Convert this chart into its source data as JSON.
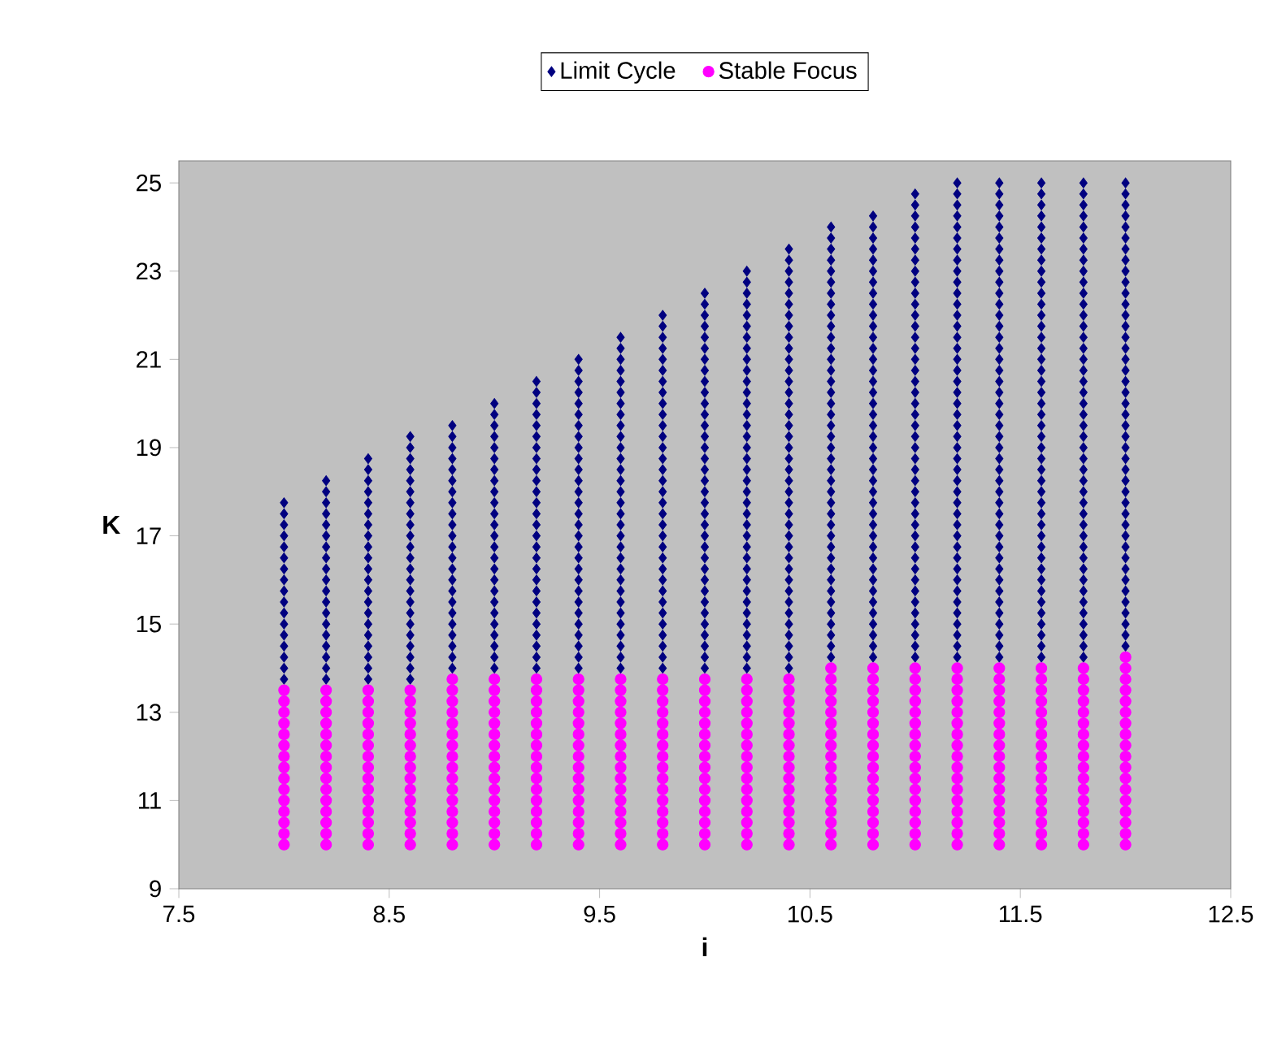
{
  "chart_data": {
    "type": "scatter",
    "xlabel": "i",
    "ylabel": "K",
    "xlim": [
      7.5,
      12.5
    ],
    "ylim": [
      9,
      25.5
    ],
    "xticks": [
      7.5,
      8.5,
      9.5,
      10.5,
      11.5,
      12.5
    ],
    "yticks": [
      9,
      11,
      13,
      15,
      17,
      19,
      21,
      23,
      25
    ],
    "legend": "top",
    "grid": false,
    "series": [
      {
        "name": "Limit Cycle",
        "color": "#000080",
        "marker": "diamond",
        "x": [
          8,
          8,
          8,
          8,
          8,
          8,
          8,
          8,
          8,
          8,
          8,
          8,
          8,
          8,
          8,
          8,
          8,
          8.2,
          8.2,
          8.2,
          8.2,
          8.2,
          8.2,
          8.2,
          8.2,
          8.2,
          8.2,
          8.2,
          8.2,
          8.2,
          8.2,
          8.2,
          8.2,
          8.2,
          8.2,
          8.2,
          8.4,
          8.4,
          8.4,
          8.4,
          8.4,
          8.4,
          8.4,
          8.4,
          8.4,
          8.4,
          8.4,
          8.4,
          8.4,
          8.4,
          8.4,
          8.4,
          8.4,
          8.4,
          8.4,
          8.4,
          8.4,
          8.6,
          8.6,
          8.6,
          8.6,
          8.6,
          8.6,
          8.6,
          8.6,
          8.6,
          8.6,
          8.6,
          8.6,
          8.6,
          8.6,
          8.6,
          8.6,
          8.6,
          8.6,
          8.6,
          8.6,
          8.6,
          8.6,
          8.6,
          8.8,
          8.8,
          8.8,
          8.8,
          8.8,
          8.8,
          8.8,
          8.8,
          8.8,
          8.8,
          8.8,
          8.8,
          8.8,
          8.8,
          8.8,
          8.8,
          8.8,
          8.8,
          8.8,
          8.8,
          8.8,
          8.8,
          8.8,
          9,
          9,
          9,
          9,
          9,
          9,
          9,
          9,
          9,
          9,
          9,
          9,
          9,
          9,
          9,
          9,
          9,
          9,
          9,
          9,
          9,
          9,
          9,
          9,
          9,
          9.2,
          9.2,
          9.2,
          9.2,
          9.2,
          9.2,
          9.2,
          9.2,
          9.2,
          9.2,
          9.2,
          9.2,
          9.2,
          9.2,
          9.2,
          9.2,
          9.2,
          9.2,
          9.2,
          9.2,
          9.2,
          9.2,
          9.2,
          9.2,
          9.2,
          9.2,
          9.2,
          9.4,
          9.4,
          9.4,
          9.4,
          9.4,
          9.4,
          9.4,
          9.4,
          9.4,
          9.4,
          9.4,
          9.4,
          9.4,
          9.4,
          9.4,
          9.4,
          9.4,
          9.4,
          9.4,
          9.4,
          9.4,
          9.4,
          9.4,
          9.4,
          9.4,
          9.4,
          9.4,
          9.4,
          9.4,
          9.6,
          9.6,
          9.6,
          9.6,
          9.6,
          9.6,
          9.6,
          9.6,
          9.6,
          9.6,
          9.6,
          9.6,
          9.6,
          9.6,
          9.6,
          9.6,
          9.6,
          9.6,
          9.6,
          9.6,
          9.6,
          9.6,
          9.6,
          9.6,
          9.6,
          9.6,
          9.6,
          9.6,
          9.6,
          9.6,
          9.6,
          9.8,
          9.8,
          9.8,
          9.8,
          9.8,
          9.8,
          9.8,
          9.8,
          9.8,
          9.8,
          9.8,
          9.8,
          9.8,
          9.8,
          9.8,
          9.8,
          9.8,
          9.8,
          9.8,
          9.8,
          9.8,
          9.8,
          9.8,
          9.8,
          9.8,
          9.8,
          9.8,
          9.8,
          9.8,
          9.8,
          9.8,
          9.8,
          9.8,
          10,
          10,
          10,
          10,
          10,
          10,
          10,
          10,
          10,
          10,
          10,
          10,
          10,
          10,
          10,
          10,
          10,
          10,
          10,
          10,
          10,
          10,
          10,
          10,
          10,
          10,
          10,
          10,
          10,
          10,
          10,
          10,
          10,
          10,
          10,
          10.2,
          10.2,
          10.2,
          10.2,
          10.2,
          10.2,
          10.2,
          10.2,
          10.2,
          10.2,
          10.2,
          10.2,
          10.2,
          10.2,
          10.2,
          10.2,
          10.2,
          10.2,
          10.2,
          10.2,
          10.2,
          10.2,
          10.2,
          10.2,
          10.2,
          10.2,
          10.2,
          10.2,
          10.2,
          10.2,
          10.2,
          10.2,
          10.2,
          10.2,
          10.2,
          10.2,
          10.2,
          10.4,
          10.4,
          10.4,
          10.4,
          10.4,
          10.4,
          10.4,
          10.4,
          10.4,
          10.4,
          10.4,
          10.4,
          10.4,
          10.4,
          10.4,
          10.4,
          10.4,
          10.4,
          10.4,
          10.4,
          10.4,
          10.4,
          10.4,
          10.4,
          10.4,
          10.4,
          10.4,
          10.4,
          10.4,
          10.4,
          10.4,
          10.4,
          10.4,
          10.4,
          10.4,
          10.4,
          10.4,
          10.4,
          10.4,
          10.6,
          10.6,
          10.6,
          10.6,
          10.6,
          10.6,
          10.6,
          10.6,
          10.6,
          10.6,
          10.6,
          10.6,
          10.6,
          10.6,
          10.6,
          10.6,
          10.6,
          10.6,
          10.6,
          10.6,
          10.6,
          10.6,
          10.6,
          10.6,
          10.6,
          10.6,
          10.6,
          10.6,
          10.6,
          10.6,
          10.6,
          10.6,
          10.6,
          10.6,
          10.6,
          10.6,
          10.6,
          10.6,
          10.6,
          10.6,
          10.8,
          10.8,
          10.8,
          10.8,
          10.8,
          10.8,
          10.8,
          10.8,
          10.8,
          10.8,
          10.8,
          10.8,
          10.8,
          10.8,
          10.8,
          10.8,
          10.8,
          10.8,
          10.8,
          10.8,
          10.8,
          10.8,
          10.8,
          10.8,
          10.8,
          10.8,
          10.8,
          10.8,
          10.8,
          10.8,
          10.8,
          10.8,
          10.8,
          10.8,
          10.8,
          10.8,
          10.8,
          10.8,
          10.8,
          10.8,
          10.8,
          11,
          11,
          11,
          11,
          11,
          11,
          11,
          11,
          11,
          11,
          11,
          11,
          11,
          11,
          11,
          11,
          11,
          11,
          11,
          11,
          11,
          11,
          11,
          11,
          11,
          11,
          11,
          11,
          11,
          11,
          11,
          11,
          11,
          11,
          11,
          11,
          11,
          11,
          11,
          11,
          11,
          11,
          11,
          11.2,
          11.2,
          11.2,
          11.2,
          11.2,
          11.2,
          11.2,
          11.2,
          11.2,
          11.2,
          11.2,
          11.2,
          11.2,
          11.2,
          11.2,
          11.2,
          11.2,
          11.2,
          11.2,
          11.2,
          11.2,
          11.2,
          11.2,
          11.2,
          11.2,
          11.2,
          11.2,
          11.2,
          11.2,
          11.2,
          11.2,
          11.2,
          11.2,
          11.2,
          11.2,
          11.2,
          11.2,
          11.2,
          11.2,
          11.2,
          11.2,
          11.2,
          11.2,
          11.2,
          11.4,
          11.4,
          11.4,
          11.4,
          11.4,
          11.4,
          11.4,
          11.4,
          11.4,
          11.4,
          11.4,
          11.4,
          11.4,
          11.4,
          11.4,
          11.4,
          11.4,
          11.4,
          11.4,
          11.4,
          11.4,
          11.4,
          11.4,
          11.4,
          11.4,
          11.4,
          11.4,
          11.4,
          11.4,
          11.4,
          11.4,
          11.4,
          11.4,
          11.4,
          11.4,
          11.4,
          11.4,
          11.4,
          11.4,
          11.4,
          11.4,
          11.4,
          11.4,
          11.4,
          11.6,
          11.6,
          11.6,
          11.6,
          11.6,
          11.6,
          11.6,
          11.6,
          11.6,
          11.6,
          11.6,
          11.6,
          11.6,
          11.6,
          11.6,
          11.6,
          11.6,
          11.6,
          11.6,
          11.6,
          11.6,
          11.6,
          11.6,
          11.6,
          11.6,
          11.6,
          11.6,
          11.6,
          11.6,
          11.6,
          11.6,
          11.6,
          11.6,
          11.6,
          11.6,
          11.6,
          11.6,
          11.6,
          11.6,
          11.6,
          11.6,
          11.6,
          11.6,
          11.6,
          11.8,
          11.8,
          11.8,
          11.8,
          11.8,
          11.8,
          11.8,
          11.8,
          11.8,
          11.8,
          11.8,
          11.8,
          11.8,
          11.8,
          11.8,
          11.8,
          11.8,
          11.8,
          11.8,
          11.8,
          11.8,
          11.8,
          11.8,
          11.8,
          11.8,
          11.8,
          11.8,
          11.8,
          11.8,
          11.8,
          11.8,
          11.8,
          11.8,
          11.8,
          11.8,
          11.8,
          11.8,
          11.8,
          11.8,
          11.8,
          11.8,
          11.8,
          11.8,
          11.8,
          12,
          12,
          12,
          12,
          12,
          12,
          12,
          12,
          12,
          12,
          12,
          12,
          12,
          12,
          12,
          12,
          12,
          12,
          12,
          12,
          12,
          12,
          12,
          12,
          12,
          12,
          12,
          12,
          12,
          12,
          12,
          12,
          12,
          12,
          12,
          12,
          12,
          12,
          12,
          12,
          12,
          12,
          12
        ],
        "values": [
          13.75,
          14,
          14.25,
          14.5,
          14.75,
          15,
          15.25,
          15.5,
          15.75,
          16,
          16.25,
          16.5,
          16.75,
          17,
          17.25,
          17.5,
          17.75,
          13.75,
          14,
          14.25,
          14.5,
          14.75,
          15,
          15.25,
          15.5,
          15.75,
          16,
          16.25,
          16.5,
          16.75,
          17,
          17.25,
          17.5,
          17.75,
          18,
          18.25,
          13.75,
          14,
          14.25,
          14.5,
          14.75,
          15,
          15.25,
          15.5,
          15.75,
          16,
          16.25,
          16.5,
          16.75,
          17,
          17.25,
          17.5,
          17.75,
          18,
          18.25,
          18.5,
          18.75,
          13.75,
          14,
          14.25,
          14.5,
          14.75,
          15,
          15.25,
          15.5,
          15.75,
          16,
          16.25,
          16.5,
          16.75,
          17,
          17.25,
          17.5,
          17.75,
          18,
          18.25,
          18.5,
          18.75,
          19,
          19.25,
          14,
          14.25,
          14.5,
          14.75,
          15,
          15.25,
          15.5,
          15.75,
          16,
          16.25,
          16.5,
          16.75,
          17,
          17.25,
          17.5,
          17.75,
          18,
          18.25,
          18.5,
          18.75,
          19,
          19.25,
          19.5,
          14,
          14.25,
          14.5,
          14.75,
          15,
          15.25,
          15.5,
          15.75,
          16,
          16.25,
          16.5,
          16.75,
          17,
          17.25,
          17.5,
          17.75,
          18,
          18.25,
          18.5,
          18.75,
          19,
          19.25,
          19.5,
          19.75,
          20,
          14,
          14.25,
          14.5,
          14.75,
          15,
          15.25,
          15.5,
          15.75,
          16,
          16.25,
          16.5,
          16.75,
          17,
          17.25,
          17.5,
          17.75,
          18,
          18.25,
          18.5,
          18.75,
          19,
          19.25,
          19.5,
          19.75,
          20,
          20.25,
          20.5,
          14,
          14.25,
          14.5,
          14.75,
          15,
          15.25,
          15.5,
          15.75,
          16,
          16.25,
          16.5,
          16.75,
          17,
          17.25,
          17.5,
          17.75,
          18,
          18.25,
          18.5,
          18.75,
          19,
          19.25,
          19.5,
          19.75,
          20,
          20.25,
          20.5,
          20.75,
          21,
          14,
          14.25,
          14.5,
          14.75,
          15,
          15.25,
          15.5,
          15.75,
          16,
          16.25,
          16.5,
          16.75,
          17,
          17.25,
          17.5,
          17.75,
          18,
          18.25,
          18.5,
          18.75,
          19,
          19.25,
          19.5,
          19.75,
          20,
          20.25,
          20.5,
          20.75,
          21,
          21.25,
          21.5,
          14,
          14.25,
          14.5,
          14.75,
          15,
          15.25,
          15.5,
          15.75,
          16,
          16.25,
          16.5,
          16.75,
          17,
          17.25,
          17.5,
          17.75,
          18,
          18.25,
          18.5,
          18.75,
          19,
          19.25,
          19.5,
          19.75,
          20,
          20.25,
          20.5,
          20.75,
          21,
          21.25,
          21.5,
          21.75,
          22,
          14,
          14.25,
          14.5,
          14.75,
          15,
          15.25,
          15.5,
          15.75,
          16,
          16.25,
          16.5,
          16.75,
          17,
          17.25,
          17.5,
          17.75,
          18,
          18.25,
          18.5,
          18.75,
          19,
          19.25,
          19.5,
          19.75,
          20,
          20.25,
          20.5,
          20.75,
          21,
          21.25,
          21.5,
          21.75,
          22,
          22.25,
          22.5,
          14,
          14.25,
          14.5,
          14.75,
          15,
          15.25,
          15.5,
          15.75,
          16,
          16.25,
          16.5,
          16.75,
          17,
          17.25,
          17.5,
          17.75,
          18,
          18.25,
          18.5,
          18.75,
          19,
          19.25,
          19.5,
          19.75,
          20,
          20.25,
          20.5,
          20.75,
          21,
          21.25,
          21.5,
          21.75,
          22,
          22.25,
          22.5,
          22.75,
          23,
          14,
          14.25,
          14.5,
          14.75,
          15,
          15.25,
          15.5,
          15.75,
          16,
          16.25,
          16.5,
          16.75,
          17,
          17.25,
          17.5,
          17.75,
          18,
          18.25,
          18.5,
          18.75,
          19,
          19.25,
          19.5,
          19.75,
          20,
          20.25,
          20.5,
          20.75,
          21,
          21.25,
          21.5,
          21.75,
          22,
          22.25,
          22.5,
          22.75,
          23,
          23.25,
          23.5,
          14.25,
          14.5,
          14.75,
          15,
          15.25,
          15.5,
          15.75,
          16,
          16.25,
          16.5,
          16.75,
          17,
          17.25,
          17.5,
          17.75,
          18,
          18.25,
          18.5,
          18.75,
          19,
          19.25,
          19.5,
          19.75,
          20,
          20.25,
          20.5,
          20.75,
          21,
          21.25,
          21.5,
          21.75,
          22,
          22.25,
          22.5,
          22.75,
          23,
          23.25,
          23.5,
          23.75,
          24,
          14.25,
          14.5,
          14.75,
          15,
          15.25,
          15.5,
          15.75,
          16,
          16.25,
          16.5,
          16.75,
          17,
          17.25,
          17.5,
          17.75,
          18,
          18.25,
          18.5,
          18.75,
          19,
          19.25,
          19.5,
          19.75,
          20,
          20.25,
          20.5,
          20.75,
          21,
          21.25,
          21.5,
          21.75,
          22,
          22.25,
          22.5,
          22.75,
          23,
          23.25,
          23.5,
          23.75,
          24,
          24.25,
          14.25,
          14.5,
          14.75,
          15,
          15.25,
          15.5,
          15.75,
          16,
          16.25,
          16.5,
          16.75,
          17,
          17.25,
          17.5,
          17.75,
          18,
          18.25,
          18.5,
          18.75,
          19,
          19.25,
          19.5,
          19.75,
          20,
          20.25,
          20.5,
          20.75,
          21,
          21.25,
          21.5,
          21.75,
          22,
          22.25,
          22.5,
          22.75,
          23,
          23.25,
          23.5,
          23.75,
          24,
          24.25,
          24.5,
          24.75,
          14.25,
          14.5,
          14.75,
          15,
          15.25,
          15.5,
          15.75,
          16,
          16.25,
          16.5,
          16.75,
          17,
          17.25,
          17.5,
          17.75,
          18,
          18.25,
          18.5,
          18.75,
          19,
          19.25,
          19.5,
          19.75,
          20,
          20.25,
          20.5,
          20.75,
          21,
          21.25,
          21.5,
          21.75,
          22,
          22.25,
          22.5,
          22.75,
          23,
          23.25,
          23.5,
          23.75,
          24,
          24.25,
          24.5,
          24.75,
          25,
          14.25,
          14.5,
          14.75,
          15,
          15.25,
          15.5,
          15.75,
          16,
          16.25,
          16.5,
          16.75,
          17,
          17.25,
          17.5,
          17.75,
          18,
          18.25,
          18.5,
          18.75,
          19,
          19.25,
          19.5,
          19.75,
          20,
          20.25,
          20.5,
          20.75,
          21,
          21.25,
          21.5,
          21.75,
          22,
          22.25,
          22.5,
          22.75,
          23,
          23.25,
          23.5,
          23.75,
          24,
          24.25,
          24.5,
          24.75,
          25,
          14.25,
          14.5,
          14.75,
          15,
          15.25,
          15.5,
          15.75,
          16,
          16.25,
          16.5,
          16.75,
          17,
          17.25,
          17.5,
          17.75,
          18,
          18.25,
          18.5,
          18.75,
          19,
          19.25,
          19.5,
          19.75,
          20,
          20.25,
          20.5,
          20.75,
          21,
          21.25,
          21.5,
          21.75,
          22,
          22.25,
          22.5,
          22.75,
          23,
          23.25,
          23.5,
          23.75,
          24,
          24.25,
          24.5,
          24.75,
          25,
          14.25,
          14.5,
          14.75,
          15,
          15.25,
          15.5,
          15.75,
          16,
          16.25,
          16.5,
          16.75,
          17,
          17.25,
          17.5,
          17.75,
          18,
          18.25,
          18.5,
          18.75,
          19,
          19.25,
          19.5,
          19.75,
          20,
          20.25,
          20.5,
          20.75,
          21,
          21.25,
          21.5,
          21.75,
          22,
          22.25,
          22.5,
          22.75,
          23,
          23.25,
          23.5,
          23.75,
          24,
          24.25,
          24.5,
          24.75,
          25,
          14.5,
          14.75,
          15,
          15.25,
          15.5,
          15.75,
          16,
          16.25,
          16.5,
          16.75,
          17,
          17.25,
          17.5,
          17.75,
          18,
          18.25,
          18.5,
          18.75,
          19,
          19.25,
          19.5,
          19.75,
          20,
          20.25,
          20.5,
          20.75,
          21,
          21.25,
          21.5,
          21.75,
          22,
          22.25,
          22.5,
          22.75,
          23,
          23.25,
          23.5,
          23.75,
          24,
          24.25,
          24.5,
          24.75,
          25
        ]
      },
      {
        "name": "Stable Focus",
        "color": "#ff00ff",
        "marker": "circle",
        "x": [
          8,
          8,
          8,
          8,
          8,
          8,
          8,
          8,
          8,
          8,
          8,
          8,
          8,
          8,
          8,
          8.2,
          8.2,
          8.2,
          8.2,
          8.2,
          8.2,
          8.2,
          8.2,
          8.2,
          8.2,
          8.2,
          8.2,
          8.2,
          8.2,
          8.2,
          8.4,
          8.4,
          8.4,
          8.4,
          8.4,
          8.4,
          8.4,
          8.4,
          8.4,
          8.4,
          8.4,
          8.4,
          8.4,
          8.4,
          8.4,
          8.6,
          8.6,
          8.6,
          8.6,
          8.6,
          8.6,
          8.6,
          8.6,
          8.6,
          8.6,
          8.6,
          8.6,
          8.6,
          8.6,
          8.6,
          8.8,
          8.8,
          8.8,
          8.8,
          8.8,
          8.8,
          8.8,
          8.8,
          8.8,
          8.8,
          8.8,
          8.8,
          8.8,
          8.8,
          8.8,
          8.8,
          9,
          9,
          9,
          9,
          9,
          9,
          9,
          9,
          9,
          9,
          9,
          9,
          9,
          9,
          9,
          9,
          9.2,
          9.2,
          9.2,
          9.2,
          9.2,
          9.2,
          9.2,
          9.2,
          9.2,
          9.2,
          9.2,
          9.2,
          9.2,
          9.2,
          9.2,
          9.2,
          9.4,
          9.4,
          9.4,
          9.4,
          9.4,
          9.4,
          9.4,
          9.4,
          9.4,
          9.4,
          9.4,
          9.4,
          9.4,
          9.4,
          9.4,
          9.4,
          9.6,
          9.6,
          9.6,
          9.6,
          9.6,
          9.6,
          9.6,
          9.6,
          9.6,
          9.6,
          9.6,
          9.6,
          9.6,
          9.6,
          9.6,
          9.6,
          9.8,
          9.8,
          9.8,
          9.8,
          9.8,
          9.8,
          9.8,
          9.8,
          9.8,
          9.8,
          9.8,
          9.8,
          9.8,
          9.8,
          9.8,
          9.8,
          10,
          10,
          10,
          10,
          10,
          10,
          10,
          10,
          10,
          10,
          10,
          10,
          10,
          10,
          10,
          10,
          10.2,
          10.2,
          10.2,
          10.2,
          10.2,
          10.2,
          10.2,
          10.2,
          10.2,
          10.2,
          10.2,
          10.2,
          10.2,
          10.2,
          10.2,
          10.2,
          10.4,
          10.4,
          10.4,
          10.4,
          10.4,
          10.4,
          10.4,
          10.4,
          10.4,
          10.4,
          10.4,
          10.4,
          10.4,
          10.4,
          10.4,
          10.4,
          10.6,
          10.6,
          10.6,
          10.6,
          10.6,
          10.6,
          10.6,
          10.6,
          10.6,
          10.6,
          10.6,
          10.6,
          10.6,
          10.6,
          10.6,
          10.6,
          10.6,
          10.8,
          10.8,
          10.8,
          10.8,
          10.8,
          10.8,
          10.8,
          10.8,
          10.8,
          10.8,
          10.8,
          10.8,
          10.8,
          10.8,
          10.8,
          10.8,
          10.8,
          11,
          11,
          11,
          11,
          11,
          11,
          11,
          11,
          11,
          11,
          11,
          11,
          11,
          11,
          11,
          11,
          11,
          11.2,
          11.2,
          11.2,
          11.2,
          11.2,
          11.2,
          11.2,
          11.2,
          11.2,
          11.2,
          11.2,
          11.2,
          11.2,
          11.2,
          11.2,
          11.2,
          11.2,
          11.4,
          11.4,
          11.4,
          11.4,
          11.4,
          11.4,
          11.4,
          11.4,
          11.4,
          11.4,
          11.4,
          11.4,
          11.4,
          11.4,
          11.4,
          11.4,
          11.4,
          11.6,
          11.6,
          11.6,
          11.6,
          11.6,
          11.6,
          11.6,
          11.6,
          11.6,
          11.6,
          11.6,
          11.6,
          11.6,
          11.6,
          11.6,
          11.6,
          11.6,
          11.8,
          11.8,
          11.8,
          11.8,
          11.8,
          11.8,
          11.8,
          11.8,
          11.8,
          11.8,
          11.8,
          11.8,
          11.8,
          11.8,
          11.8,
          11.8,
          11.8,
          12,
          12,
          12,
          12,
          12,
          12,
          12,
          12,
          12,
          12,
          12,
          12,
          12,
          12,
          12,
          12,
          12,
          12
        ],
        "values": [
          10,
          10.25,
          10.5,
          10.75,
          11,
          11.25,
          11.5,
          11.75,
          12,
          12.25,
          12.5,
          12.75,
          13,
          13.25,
          13.5,
          10,
          10.25,
          10.5,
          10.75,
          11,
          11.25,
          11.5,
          11.75,
          12,
          12.25,
          12.5,
          12.75,
          13,
          13.25,
          13.5,
          10,
          10.25,
          10.5,
          10.75,
          11,
          11.25,
          11.5,
          11.75,
          12,
          12.25,
          12.5,
          12.75,
          13,
          13.25,
          13.5,
          10,
          10.25,
          10.5,
          10.75,
          11,
          11.25,
          11.5,
          11.75,
          12,
          12.25,
          12.5,
          12.75,
          13,
          13.25,
          13.5,
          10,
          10.25,
          10.5,
          10.75,
          11,
          11.25,
          11.5,
          11.75,
          12,
          12.25,
          12.5,
          12.75,
          13,
          13.25,
          13.5,
          13.75,
          10,
          10.25,
          10.5,
          10.75,
          11,
          11.25,
          11.5,
          11.75,
          12,
          12.25,
          12.5,
          12.75,
          13,
          13.25,
          13.5,
          13.75,
          10,
          10.25,
          10.5,
          10.75,
          11,
          11.25,
          11.5,
          11.75,
          12,
          12.25,
          12.5,
          12.75,
          13,
          13.25,
          13.5,
          13.75,
          10,
          10.25,
          10.5,
          10.75,
          11,
          11.25,
          11.5,
          11.75,
          12,
          12.25,
          12.5,
          12.75,
          13,
          13.25,
          13.5,
          13.75,
          10,
          10.25,
          10.5,
          10.75,
          11,
          11.25,
          11.5,
          11.75,
          12,
          12.25,
          12.5,
          12.75,
          13,
          13.25,
          13.5,
          13.75,
          10,
          10.25,
          10.5,
          10.75,
          11,
          11.25,
          11.5,
          11.75,
          12,
          12.25,
          12.5,
          12.75,
          13,
          13.25,
          13.5,
          13.75,
          10,
          10.25,
          10.5,
          10.75,
          11,
          11.25,
          11.5,
          11.75,
          12,
          12.25,
          12.5,
          12.75,
          13,
          13.25,
          13.5,
          13.75,
          10,
          10.25,
          10.5,
          10.75,
          11,
          11.25,
          11.5,
          11.75,
          12,
          12.25,
          12.5,
          12.75,
          13,
          13.25,
          13.5,
          13.75,
          10,
          10.25,
          10.5,
          10.75,
          11,
          11.25,
          11.5,
          11.75,
          12,
          12.25,
          12.5,
          12.75,
          13,
          13.25,
          13.5,
          13.75,
          10,
          10.25,
          10.5,
          10.75,
          11,
          11.25,
          11.5,
          11.75,
          12,
          12.25,
          12.5,
          12.75,
          13,
          13.25,
          13.5,
          13.75,
          14,
          10,
          10.25,
          10.5,
          10.75,
          11,
          11.25,
          11.5,
          11.75,
          12,
          12.25,
          12.5,
          12.75,
          13,
          13.25,
          13.5,
          13.75,
          14,
          10,
          10.25,
          10.5,
          10.75,
          11,
          11.25,
          11.5,
          11.75,
          12,
          12.25,
          12.5,
          12.75,
          13,
          13.25,
          13.5,
          13.75,
          14,
          10,
          10.25,
          10.5,
          10.75,
          11,
          11.25,
          11.5,
          11.75,
          12,
          12.25,
          12.5,
          12.75,
          13,
          13.25,
          13.5,
          13.75,
          14,
          10,
          10.25,
          10.5,
          10.75,
          11,
          11.25,
          11.5,
          11.75,
          12,
          12.25,
          12.5,
          12.75,
          13,
          13.25,
          13.5,
          13.75,
          14,
          10,
          10.25,
          10.5,
          10.75,
          11,
          11.25,
          11.5,
          11.75,
          12,
          12.25,
          12.5,
          12.75,
          13,
          13.25,
          13.5,
          13.75,
          14,
          10,
          10.25,
          10.5,
          10.75,
          11,
          11.25,
          11.5,
          11.75,
          12,
          12.25,
          12.5,
          12.75,
          13,
          13.25,
          13.5,
          13.75,
          14,
          10,
          10.25,
          10.5,
          10.75,
          11,
          11.25,
          11.5,
          11.75,
          12,
          12.25,
          12.5,
          12.75,
          13,
          13.25,
          13.5,
          13.75,
          14,
          14.25
        ]
      }
    ]
  }
}
